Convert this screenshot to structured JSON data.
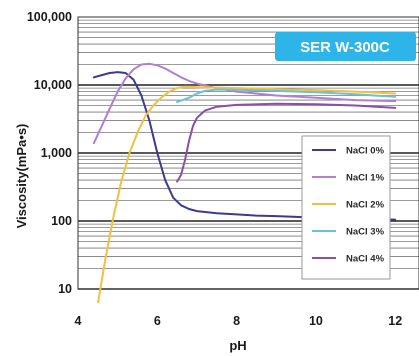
{
  "chart_data": {
    "type": "line",
    "title": "SER W-300C",
    "xlabel": "pH",
    "ylabel": "Viscosity(mPa•s)",
    "xlim": [
      4,
      12.6
    ],
    "ylim": [
      10,
      100000
    ],
    "y_scale": "log",
    "x_ticks": [
      4,
      6,
      8,
      10,
      12
    ],
    "y_ticks": [
      {
        "value": 10,
        "label": "10"
      },
      {
        "value": 100,
        "label": "100"
      },
      {
        "value": 1000,
        "label": "1,000"
      },
      {
        "value": 10000,
        "label": "10,000"
      },
      {
        "value": 100000,
        "label": "100,000"
      }
    ],
    "grid": "horizontal",
    "legend_position": "right",
    "badge_color": "#2db4e8",
    "series": [
      {
        "name": "NaCl 0%",
        "color": "#3b3b8f",
        "points": [
          [
            4.4,
            13000
          ],
          [
            4.6,
            14000
          ],
          [
            4.8,
            15000
          ],
          [
            5.0,
            15500
          ],
          [
            5.2,
            15000
          ],
          [
            5.4,
            12000
          ],
          [
            5.6,
            7000
          ],
          [
            5.8,
            3000
          ],
          [
            6.0,
            1000
          ],
          [
            6.2,
            400
          ],
          [
            6.4,
            220
          ],
          [
            6.6,
            170
          ],
          [
            6.8,
            150
          ],
          [
            7.0,
            140
          ],
          [
            7.5,
            130
          ],
          [
            8.0,
            125
          ],
          [
            8.5,
            120
          ],
          [
            9.0,
            118
          ],
          [
            9.5,
            115
          ],
          [
            10.0,
            112
          ],
          [
            10.5,
            110
          ],
          [
            11.0,
            108
          ],
          [
            11.5,
            106
          ],
          [
            12.0,
            105
          ]
        ]
      },
      {
        "name": "NaCl 1%",
        "color": "#b07fd0",
        "points": [
          [
            4.4,
            1400
          ],
          [
            4.6,
            2500
          ],
          [
            4.8,
            4500
          ],
          [
            5.0,
            8000
          ],
          [
            5.2,
            12500
          ],
          [
            5.4,
            17000
          ],
          [
            5.6,
            20000
          ],
          [
            5.8,
            20500
          ],
          [
            6.0,
            19500
          ],
          [
            6.2,
            17500
          ],
          [
            6.4,
            15000
          ],
          [
            6.6,
            13000
          ],
          [
            6.8,
            11500
          ],
          [
            7.0,
            10500
          ],
          [
            7.5,
            9000
          ],
          [
            8.0,
            8000
          ],
          [
            9.0,
            7000
          ],
          [
            10.0,
            6500
          ],
          [
            11.0,
            6000
          ],
          [
            12.0,
            5800
          ]
        ]
      },
      {
        "name": "NaCl 2%",
        "color": "#f2c040",
        "points": [
          [
            4.5,
            6
          ],
          [
            4.7,
            30
          ],
          [
            4.9,
            120
          ],
          [
            5.1,
            400
          ],
          [
            5.3,
            1000
          ],
          [
            5.5,
            2000
          ],
          [
            5.7,
            3500
          ],
          [
            5.9,
            5000
          ],
          [
            6.1,
            6500
          ],
          [
            6.3,
            8000
          ],
          [
            6.5,
            9000
          ],
          [
            6.7,
            9500
          ],
          [
            7.0,
            9300
          ],
          [
            8.0,
            9000
          ],
          [
            9.0,
            8700
          ],
          [
            10.0,
            8400
          ],
          [
            11.0,
            8000
          ],
          [
            12.0,
            7500
          ]
        ]
      },
      {
        "name": "NaCl 3%",
        "color": "#6cc0d8",
        "points": [
          [
            6.5,
            5600
          ],
          [
            6.8,
            6500
          ],
          [
            7.0,
            7500
          ],
          [
            7.2,
            8200
          ],
          [
            7.5,
            8600
          ],
          [
            8.0,
            8500
          ],
          [
            9.0,
            8200
          ],
          [
            10.0,
            7800
          ],
          [
            11.0,
            7300
          ],
          [
            12.0,
            6700
          ]
        ]
      },
      {
        "name": "NaCl 4%",
        "color": "#8a4fa6",
        "points": [
          [
            6.5,
            380
          ],
          [
            6.6,
            480
          ],
          [
            6.7,
            800
          ],
          [
            6.8,
            1500
          ],
          [
            6.9,
            2500
          ],
          [
            7.0,
            3300
          ],
          [
            7.2,
            4200
          ],
          [
            7.5,
            4800
          ],
          [
            8.0,
            5100
          ],
          [
            9.0,
            5300
          ],
          [
            10.0,
            5200
          ],
          [
            11.0,
            5000
          ],
          [
            12.0,
            4600
          ]
        ]
      }
    ]
  }
}
